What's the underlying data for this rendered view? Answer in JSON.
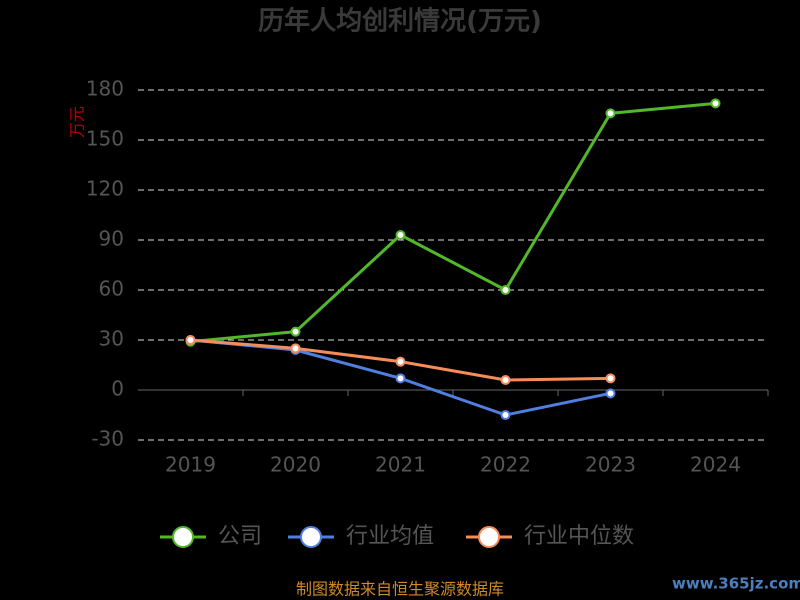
{
  "chart_data": {
    "type": "line",
    "title": "历年人均创利情况(万元)",
    "y_axis_label": "万元",
    "categories": [
      "2019",
      "2020",
      "2021",
      "2022",
      "2023",
      "2024"
    ],
    "series": [
      {
        "name": "公司",
        "color": "#52b82a",
        "values": [
          29,
          35,
          93,
          60,
          166,
          172
        ]
      },
      {
        "name": "行业均值",
        "color": "#4f7fdf",
        "values": [
          30,
          24,
          7,
          -15,
          -2,
          null
        ]
      },
      {
        "name": "行业中位数",
        "color": "#f58d5a",
        "values": [
          30,
          25,
          17,
          6,
          7,
          null
        ]
      }
    ],
    "ylim": [
      -30,
      180
    ],
    "yticks": [
      -30,
      0,
      30,
      60,
      90,
      120,
      150,
      180
    ],
    "grid": true,
    "legend": "bottom",
    "source": "制图数据来自恒生聚源数据库",
    "watermark": "www.365jz.com"
  }
}
